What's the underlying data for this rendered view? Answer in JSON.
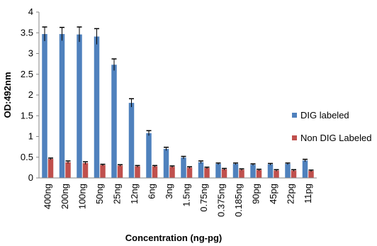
{
  "chart_data": {
    "type": "bar",
    "xlabel": "Concentration (ng-pg)",
    "ylabel": "OD:492nm",
    "ylim": [
      0,
      4
    ],
    "yticks": [
      "0",
      "0.5",
      "1",
      "1.5",
      "2",
      "2.5",
      "3",
      "3.5",
      "4"
    ],
    "grid": false,
    "legend_position": "right",
    "categories": [
      "400ng",
      "200ng",
      "100ng",
      "50ng",
      "25ng",
      "12ng",
      "6ng",
      "3ng",
      "1.5ng",
      "0.75ng",
      "0.375ng",
      "0.185ng",
      "90pg",
      "45pg",
      "22pg",
      "11pg"
    ],
    "series": [
      {
        "name": "DIG labeled",
        "color": "#4F81BD",
        "values": [
          3.47,
          3.47,
          3.46,
          3.41,
          2.73,
          1.81,
          1.08,
          0.7,
          0.49,
          0.38,
          0.34,
          0.34,
          0.32,
          0.33,
          0.34,
          0.42
        ],
        "errors": [
          0.17,
          0.16,
          0.18,
          0.19,
          0.14,
          0.1,
          0.06,
          0.04,
          0.03,
          0.03,
          0.02,
          0.02,
          0.02,
          0.02,
          0.02,
          0.03
        ]
      },
      {
        "name": "Non DIG Labeled",
        "color": "#C0504D",
        "values": [
          0.46,
          0.38,
          0.36,
          0.31,
          0.3,
          0.28,
          0.28,
          0.27,
          0.25,
          0.24,
          0.21,
          0.2,
          0.19,
          0.18,
          0.18,
          0.17
        ],
        "errors": [
          0.02,
          0.03,
          0.03,
          0.02,
          0.02,
          0.02,
          0.02,
          0.02,
          0.02,
          0.02,
          0.02,
          0.02,
          0.02,
          0.02,
          0.02,
          0.02
        ]
      }
    ]
  }
}
